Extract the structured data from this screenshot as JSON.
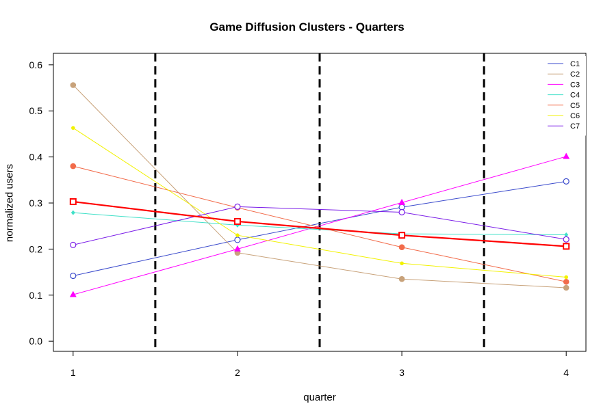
{
  "chart_data": {
    "type": "line",
    "title": "Game Diffusion Clusters - Quarters",
    "xlabel": "quarter",
    "ylabel": "normalized users",
    "x": [
      1,
      2,
      3,
      4
    ],
    "xlim": [
      0.88,
      4.12
    ],
    "ylim": [
      -0.022,
      0.625
    ],
    "x_ticks": [
      "1",
      "2",
      "3",
      "4"
    ],
    "y_ticks": [
      "0.0",
      "0.1",
      "0.2",
      "0.3",
      "0.4",
      "0.5",
      "0.6"
    ],
    "y_tick_values": [
      0,
      0.1,
      0.2,
      0.3,
      0.4,
      0.5,
      0.6
    ],
    "vlines": [
      1.5,
      2.5,
      3.5
    ],
    "legend_position": "top-right",
    "series": [
      {
        "name": "C1",
        "color": "#3A4ACC",
        "marker": "open-circle",
        "values": [
          0.142,
          0.22,
          0.291,
          0.347
        ]
      },
      {
        "name": "C2",
        "color": "#C8A27A",
        "marker": "filled-circle",
        "values": [
          0.556,
          0.192,
          0.135,
          0.116
        ]
      },
      {
        "name": "C3",
        "color": "#FF00FF",
        "marker": "triangle",
        "values": [
          0.101,
          0.2,
          0.301,
          0.401
        ]
      },
      {
        "name": "C4",
        "color": "#40E0C8",
        "marker": "diamond",
        "values": [
          0.279,
          0.252,
          0.233,
          0.231
        ]
      },
      {
        "name": "C5",
        "color": "#F26B4A",
        "marker": "filled-circle",
        "values": [
          0.38,
          0.29,
          0.204,
          0.129
        ]
      },
      {
        "name": "C6",
        "color": "#F2F200",
        "marker": "filled-circle",
        "values": [
          0.463,
          0.23,
          0.169,
          0.139
        ]
      },
      {
        "name": "C7",
        "color": "#7A1CE8",
        "marker": "open-circle",
        "values": [
          0.209,
          0.292,
          0.28,
          0.221
        ]
      },
      {
        "name": "",
        "color": "#FF0000",
        "marker": "open-square",
        "values": [
          0.303,
          0.26,
          0.23,
          0.206
        ]
      }
    ]
  }
}
